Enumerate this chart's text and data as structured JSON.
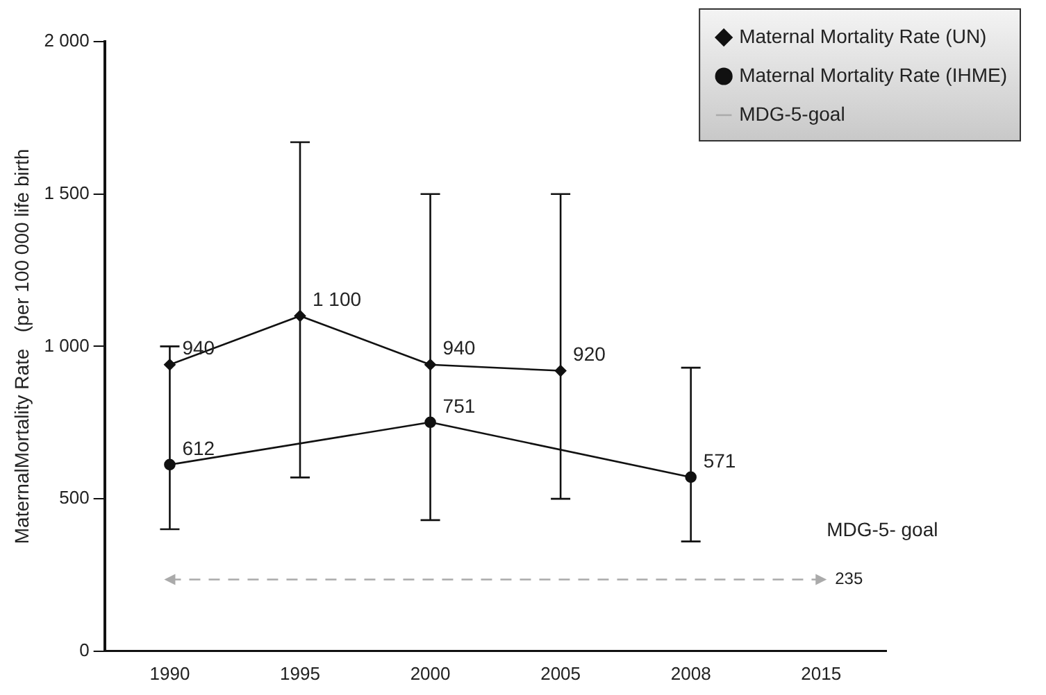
{
  "chart_data": {
    "type": "line",
    "ylabel": "MaternalMortality Rate   (per 100 000 life birth",
    "categories": [
      "1990",
      "1995",
      "2000",
      "2005",
      "2008",
      "2015"
    ],
    "series": [
      {
        "name": "Maternal Mortality Rate (UN)",
        "color": "#111111",
        "marker": "diamond",
        "values": [
          940,
          1100,
          940,
          920,
          null,
          null
        ],
        "value_labels": [
          "940",
          "1 100",
          "940",
          "920",
          null,
          null
        ],
        "errors": [
          null,
          [
            570,
            1670
          ],
          [
            430,
            1500
          ],
          [
            500,
            1500
          ],
          null,
          null
        ]
      },
      {
        "name": "Maternal Mortality Rate (IHME)",
        "color": "#111111",
        "marker": "circle",
        "values": [
          612,
          null,
          751,
          null,
          571,
          null
        ],
        "value_labels": [
          "612",
          null,
          "751",
          null,
          "571",
          null
        ],
        "errors": [
          [
            400,
            1000
          ],
          null,
          null,
          null,
          [
            360,
            930
          ],
          null
        ]
      },
      {
        "name": "MDG-5-goal",
        "color": "#aaaaaa",
        "marker": "none",
        "line_style": "dashed",
        "values": [
          235,
          235,
          235,
          235,
          235,
          235
        ]
      }
    ],
    "annotations": [
      {
        "text": "MDG-5- goal",
        "x": "2015",
        "y": 235
      },
      {
        "text": "235",
        "x": "2015",
        "y": 235
      }
    ],
    "ylim": [
      0,
      2000
    ],
    "yticks": [
      {
        "value": 0,
        "label": "0"
      },
      {
        "value": 500,
        "label": "500"
      },
      {
        "value": 1000,
        "label": "1 000"
      },
      {
        "value": 1500,
        "label": "1 500"
      },
      {
        "value": 2000,
        "label": "2 000"
      }
    ],
    "grid": false,
    "legend": "top right"
  }
}
